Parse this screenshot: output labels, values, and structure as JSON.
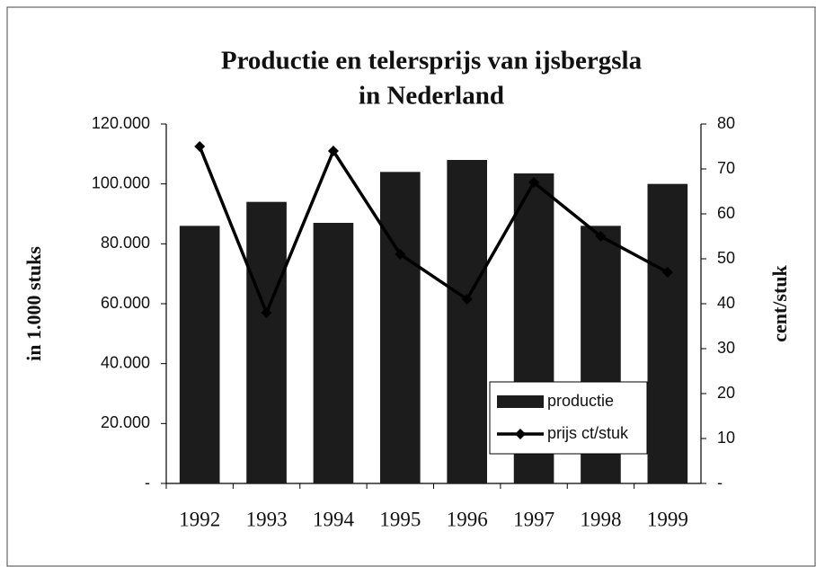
{
  "chart_data": {
    "type": "bar-line",
    "title": [
      "Productie en telersprijs van ijsbergsla",
      "in Nederland"
    ],
    "y_label": "in 1.000 stuks",
    "y2_label": "cent/stuk",
    "categories": [
      "1992",
      "1993",
      "1994",
      "1995",
      "1996",
      "1997",
      "1998",
      "1999"
    ],
    "series": [
      {
        "name": "productie",
        "type": "bar",
        "color": "#1c1c1c",
        "values": [
          86000,
          94000,
          87000,
          104000,
          108000,
          103500,
          86000,
          100000
        ]
      },
      {
        "name": "prijs ct/stuk",
        "type": "line",
        "axis": "y2",
        "color": "#000000",
        "values": [
          75,
          38,
          74,
          51,
          41,
          67,
          55,
          47
        ]
      }
    ],
    "ylim": [
      0,
      120000
    ],
    "yticks": [
      {
        "value": 0,
        "label": "-"
      },
      {
        "value": 20000,
        "label": "20.000"
      },
      {
        "value": 40000,
        "label": "40.000"
      },
      {
        "value": 60000,
        "label": "60.000"
      },
      {
        "value": 80000,
        "label": "80.000"
      },
      {
        "value": 100000,
        "label": "100.000"
      },
      {
        "value": 120000,
        "label": "120.000"
      }
    ],
    "y2lim": [
      0,
      80
    ],
    "y2ticks": [
      {
        "value": 0,
        "label": "-"
      },
      10,
      20,
      30,
      40,
      50,
      60,
      70,
      80
    ],
    "grid": false,
    "legend": "bottom-right"
  }
}
